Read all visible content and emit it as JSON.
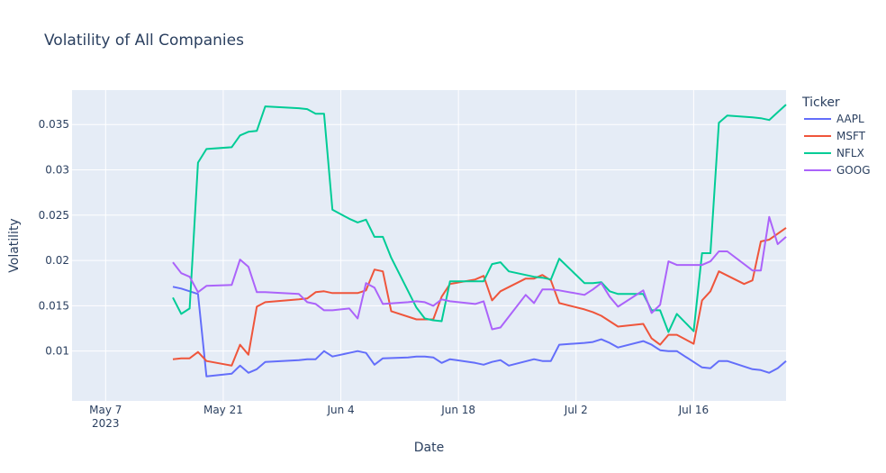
{
  "chart_data": {
    "type": "line",
    "title": "Volatility of All Companies",
    "xlabel": "Date",
    "ylabel": "Volatility",
    "legend_title": "Ticker",
    "legend_position": "right",
    "grid": true,
    "xlim": [
      "2023-05-03",
      "2023-07-27"
    ],
    "ylim": [
      0.0045,
      0.0388
    ],
    "x_ticks": [
      {
        "date": "2023-05-07",
        "label": "May 7",
        "sublabel": "2023"
      },
      {
        "date": "2023-05-21",
        "label": "May 21",
        "sublabel": ""
      },
      {
        "date": "2023-06-04",
        "label": "Jun 4",
        "sublabel": ""
      },
      {
        "date": "2023-06-18",
        "label": "Jun 18",
        "sublabel": ""
      },
      {
        "date": "2023-07-02",
        "label": "Jul 2",
        "sublabel": ""
      },
      {
        "date": "2023-07-16",
        "label": "Jul 16",
        "sublabel": ""
      }
    ],
    "y_ticks": [
      {
        "value": 0.01,
        "label": "0.01"
      },
      {
        "value": 0.015,
        "label": "0.015"
      },
      {
        "value": 0.02,
        "label": "0.02"
      },
      {
        "value": 0.025,
        "label": "0.025"
      },
      {
        "value": 0.03,
        "label": "0.03"
      },
      {
        "value": 0.035,
        "label": "0.035"
      }
    ],
    "series": [
      {
        "name": "AAPL",
        "color": "#636efa",
        "points": [
          [
            "2023-05-15",
            0.0171
          ],
          [
            "2023-05-16",
            0.0169
          ],
          [
            "2023-05-17",
            0.0166
          ],
          [
            "2023-05-18",
            0.0163
          ],
          [
            "2023-05-19",
            0.0072
          ],
          [
            "2023-05-22",
            0.0075
          ],
          [
            "2023-05-23",
            0.0084
          ],
          [
            "2023-05-24",
            0.0076
          ],
          [
            "2023-05-25",
            0.008
          ],
          [
            "2023-05-26",
            0.0088
          ],
          [
            "2023-05-30",
            0.009
          ],
          [
            "2023-05-31",
            0.0091
          ],
          [
            "2023-06-01",
            0.0091
          ],
          [
            "2023-06-02",
            0.01
          ],
          [
            "2023-06-03",
            0.0094
          ],
          [
            "2023-06-05",
            0.0098
          ],
          [
            "2023-06-06",
            0.01
          ],
          [
            "2023-06-07",
            0.0098
          ],
          [
            "2023-06-08",
            0.0085
          ],
          [
            "2023-06-09",
            0.0092
          ],
          [
            "2023-06-12",
            0.0093
          ],
          [
            "2023-06-13",
            0.0094
          ],
          [
            "2023-06-14",
            0.0094
          ],
          [
            "2023-06-15",
            0.0093
          ],
          [
            "2023-06-16",
            0.0087
          ],
          [
            "2023-06-17",
            0.0091
          ],
          [
            "2023-06-20",
            0.0087
          ],
          [
            "2023-06-21",
            0.0085
          ],
          [
            "2023-06-22",
            0.0088
          ],
          [
            "2023-06-23",
            0.009
          ],
          [
            "2023-06-24",
            0.0084
          ],
          [
            "2023-06-27",
            0.0091
          ],
          [
            "2023-06-28",
            0.0089
          ],
          [
            "2023-06-29",
            0.0089
          ],
          [
            "2023-06-30",
            0.0107
          ],
          [
            "2023-07-03",
            0.0109
          ],
          [
            "2023-07-04",
            0.011
          ],
          [
            "2023-07-05",
            0.0113
          ],
          [
            "2023-07-06",
            0.0109
          ],
          [
            "2023-07-07",
            0.0104
          ],
          [
            "2023-07-10",
            0.0111
          ],
          [
            "2023-07-11",
            0.0107
          ],
          [
            "2023-07-12",
            0.0101
          ],
          [
            "2023-07-13",
            0.01
          ],
          [
            "2023-07-14",
            0.01
          ],
          [
            "2023-07-17",
            0.0082
          ],
          [
            "2023-07-18",
            0.0081
          ],
          [
            "2023-07-19",
            0.0089
          ],
          [
            "2023-07-20",
            0.0089
          ],
          [
            "2023-07-23",
            0.008
          ],
          [
            "2023-07-24",
            0.0079
          ],
          [
            "2023-07-25",
            0.0076
          ],
          [
            "2023-07-26",
            0.0081
          ],
          [
            "2023-07-27",
            0.0089
          ]
        ]
      },
      {
        "name": "MSFT",
        "color": "#ef553b",
        "points": [
          [
            "2023-05-15",
            0.0091
          ],
          [
            "2023-05-16",
            0.0092
          ],
          [
            "2023-05-17",
            0.0092
          ],
          [
            "2023-05-18",
            0.0099
          ],
          [
            "2023-05-19",
            0.0089
          ],
          [
            "2023-05-22",
            0.0084
          ],
          [
            "2023-05-23",
            0.0107
          ],
          [
            "2023-05-24",
            0.0096
          ],
          [
            "2023-05-25",
            0.0149
          ],
          [
            "2023-05-26",
            0.0154
          ],
          [
            "2023-05-30",
            0.0157
          ],
          [
            "2023-05-31",
            0.0158
          ],
          [
            "2023-06-01",
            0.0165
          ],
          [
            "2023-06-02",
            0.0166
          ],
          [
            "2023-06-03",
            0.0164
          ],
          [
            "2023-06-05",
            0.0164
          ],
          [
            "2023-06-06",
            0.0164
          ],
          [
            "2023-06-07",
            0.0167
          ],
          [
            "2023-06-08",
            0.019
          ],
          [
            "2023-06-09",
            0.0188
          ],
          [
            "2023-06-10",
            0.0144
          ],
          [
            "2023-06-13",
            0.0135
          ],
          [
            "2023-06-14",
            0.0135
          ],
          [
            "2023-06-15",
            0.0135
          ],
          [
            "2023-06-16",
            0.016
          ],
          [
            "2023-06-17",
            0.0174
          ],
          [
            "2023-06-20",
            0.0179
          ],
          [
            "2023-06-21",
            0.0183
          ],
          [
            "2023-06-22",
            0.0156
          ],
          [
            "2023-06-23",
            0.0166
          ],
          [
            "2023-06-26",
            0.018
          ],
          [
            "2023-06-27",
            0.018
          ],
          [
            "2023-06-28",
            0.0184
          ],
          [
            "2023-06-29",
            0.0178
          ],
          [
            "2023-06-30",
            0.0153
          ],
          [
            "2023-07-03",
            0.0146
          ],
          [
            "2023-07-04",
            0.0143
          ],
          [
            "2023-07-05",
            0.0139
          ],
          [
            "2023-07-06",
            0.0133
          ],
          [
            "2023-07-07",
            0.0127
          ],
          [
            "2023-07-10",
            0.013
          ],
          [
            "2023-07-11",
            0.0114
          ],
          [
            "2023-07-12",
            0.0107
          ],
          [
            "2023-07-13",
            0.0118
          ],
          [
            "2023-07-14",
            0.0118
          ],
          [
            "2023-07-16",
            0.0108
          ],
          [
            "2023-07-17",
            0.0156
          ],
          [
            "2023-07-18",
            0.0166
          ],
          [
            "2023-07-19",
            0.0188
          ],
          [
            "2023-07-22",
            0.0174
          ],
          [
            "2023-07-23",
            0.0178
          ],
          [
            "2023-07-24",
            0.0221
          ],
          [
            "2023-07-25",
            0.0223
          ],
          [
            "2023-07-27",
            0.0236
          ]
        ]
      },
      {
        "name": "NFLX",
        "color": "#00cc96",
        "points": [
          [
            "2023-05-15",
            0.0159
          ],
          [
            "2023-05-16",
            0.0141
          ],
          [
            "2023-05-17",
            0.0147
          ],
          [
            "2023-05-18",
            0.0308
          ],
          [
            "2023-05-19",
            0.0323
          ],
          [
            "2023-05-22",
            0.0325
          ],
          [
            "2023-05-23",
            0.0338
          ],
          [
            "2023-05-24",
            0.0342
          ],
          [
            "2023-05-25",
            0.0343
          ],
          [
            "2023-05-26",
            0.037
          ],
          [
            "2023-05-30",
            0.0368
          ],
          [
            "2023-05-31",
            0.0367
          ],
          [
            "2023-06-01",
            0.0362
          ],
          [
            "2023-06-02",
            0.0362
          ],
          [
            "2023-06-03",
            0.0256
          ],
          [
            "2023-06-05",
            0.0246
          ],
          [
            "2023-06-06",
            0.0242
          ],
          [
            "2023-06-07",
            0.0245
          ],
          [
            "2023-06-08",
            0.0226
          ],
          [
            "2023-06-09",
            0.0226
          ],
          [
            "2023-06-10",
            0.0203
          ],
          [
            "2023-06-13",
            0.0148
          ],
          [
            "2023-06-14",
            0.0136
          ],
          [
            "2023-06-15",
            0.0134
          ],
          [
            "2023-06-16",
            0.0133
          ],
          [
            "2023-06-17",
            0.0177
          ],
          [
            "2023-06-20",
            0.0177
          ],
          [
            "2023-06-21",
            0.0177
          ],
          [
            "2023-06-22",
            0.0196
          ],
          [
            "2023-06-23",
            0.0198
          ],
          [
            "2023-06-24",
            0.0188
          ],
          [
            "2023-06-27",
            0.0182
          ],
          [
            "2023-06-28",
            0.0181
          ],
          [
            "2023-06-29",
            0.0179
          ],
          [
            "2023-06-30",
            0.0202
          ],
          [
            "2023-07-03",
            0.0175
          ],
          [
            "2023-07-04",
            0.0175
          ],
          [
            "2023-07-05",
            0.0176
          ],
          [
            "2023-07-06",
            0.0166
          ],
          [
            "2023-07-07",
            0.0163
          ],
          [
            "2023-07-10",
            0.0163
          ],
          [
            "2023-07-11",
            0.0145
          ],
          [
            "2023-07-12",
            0.0145
          ],
          [
            "2023-07-13",
            0.0121
          ],
          [
            "2023-07-14",
            0.0141
          ],
          [
            "2023-07-16",
            0.0122
          ],
          [
            "2023-07-17",
            0.0208
          ],
          [
            "2023-07-18",
            0.0208
          ],
          [
            "2023-07-19",
            0.0352
          ],
          [
            "2023-07-20",
            0.036
          ],
          [
            "2023-07-23",
            0.0358
          ],
          [
            "2023-07-24",
            0.0357
          ],
          [
            "2023-07-25",
            0.0355
          ],
          [
            "2023-07-27",
            0.0372
          ]
        ]
      },
      {
        "name": "GOOG",
        "color": "#ab63fa",
        "points": [
          [
            "2023-05-15",
            0.0198
          ],
          [
            "2023-05-16",
            0.0186
          ],
          [
            "2023-05-17",
            0.0182
          ],
          [
            "2023-05-18",
            0.0165
          ],
          [
            "2023-05-19",
            0.0172
          ],
          [
            "2023-05-22",
            0.0173
          ],
          [
            "2023-05-23",
            0.0201
          ],
          [
            "2023-05-24",
            0.0193
          ],
          [
            "2023-05-25",
            0.0165
          ],
          [
            "2023-05-26",
            0.0165
          ],
          [
            "2023-05-30",
            0.0163
          ],
          [
            "2023-05-31",
            0.0154
          ],
          [
            "2023-06-01",
            0.0152
          ],
          [
            "2023-06-02",
            0.0145
          ],
          [
            "2023-06-03",
            0.0145
          ],
          [
            "2023-06-05",
            0.0147
          ],
          [
            "2023-06-06",
            0.0136
          ],
          [
            "2023-06-07",
            0.0175
          ],
          [
            "2023-06-08",
            0.017
          ],
          [
            "2023-06-09",
            0.0152
          ],
          [
            "2023-06-12",
            0.0154
          ],
          [
            "2023-06-13",
            0.0155
          ],
          [
            "2023-06-14",
            0.0154
          ],
          [
            "2023-06-15",
            0.015
          ],
          [
            "2023-06-16",
            0.0157
          ],
          [
            "2023-06-17",
            0.0155
          ],
          [
            "2023-06-20",
            0.0152
          ],
          [
            "2023-06-21",
            0.0155
          ],
          [
            "2023-06-22",
            0.0124
          ],
          [
            "2023-06-23",
            0.0126
          ],
          [
            "2023-06-26",
            0.0162
          ],
          [
            "2023-06-27",
            0.0153
          ],
          [
            "2023-06-28",
            0.0168
          ],
          [
            "2023-06-29",
            0.0168
          ],
          [
            "2023-06-30",
            0.0167
          ],
          [
            "2023-07-03",
            0.0162
          ],
          [
            "2023-07-04",
            0.0168
          ],
          [
            "2023-07-05",
            0.0175
          ],
          [
            "2023-07-06",
            0.016
          ],
          [
            "2023-07-07",
            0.0149
          ],
          [
            "2023-07-10",
            0.0167
          ],
          [
            "2023-07-11",
            0.0142
          ],
          [
            "2023-07-12",
            0.0151
          ],
          [
            "2023-07-13",
            0.0199
          ],
          [
            "2023-07-14",
            0.0195
          ],
          [
            "2023-07-17",
            0.0195
          ],
          [
            "2023-07-18",
            0.0199
          ],
          [
            "2023-07-19",
            0.021
          ],
          [
            "2023-07-20",
            0.021
          ],
          [
            "2023-07-23",
            0.0189
          ],
          [
            "2023-07-24",
            0.0189
          ],
          [
            "2023-07-25",
            0.0248
          ],
          [
            "2023-07-26",
            0.0218
          ],
          [
            "2023-07-27",
            0.0226
          ]
        ]
      }
    ]
  }
}
